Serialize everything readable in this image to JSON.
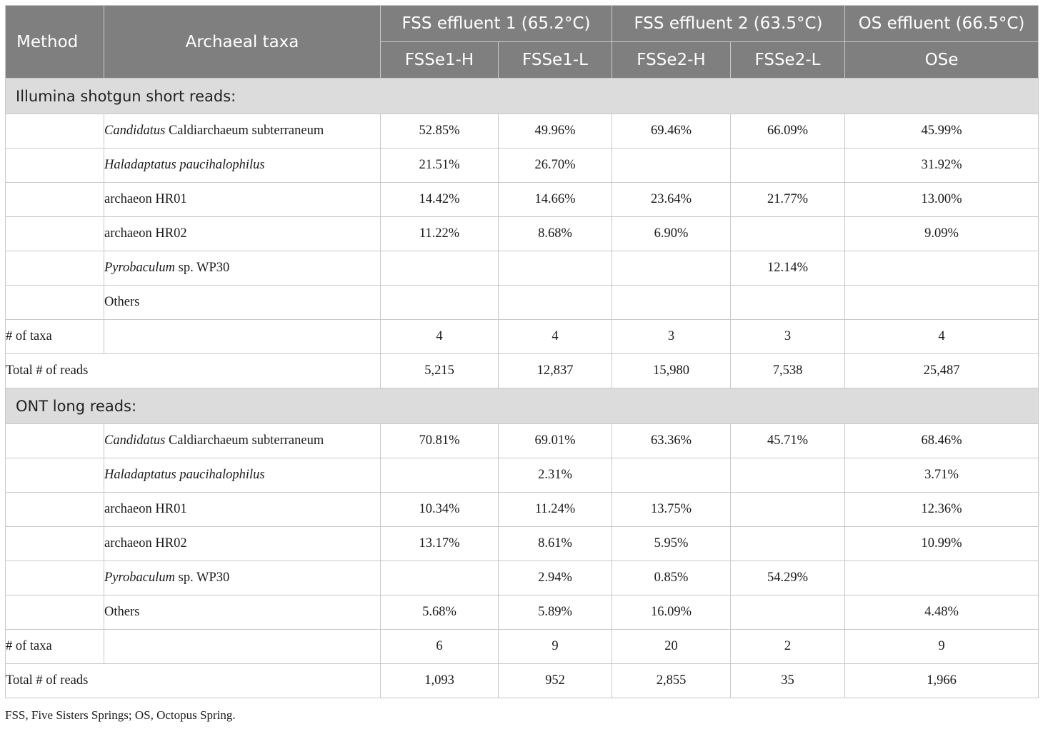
{
  "header": {
    "method": "Method",
    "archaeal_taxa": "Archaeal taxa",
    "groups": [
      "FSS effluent 1 (65.2°C)",
      "FSS effluent 2 (63.5°C)",
      "OS effluent (66.5°C)"
    ],
    "samples": [
      "FSSe1-H",
      "FSSe1-L",
      "FSSe2-H",
      "FSSe2-L",
      "OSe"
    ]
  },
  "sections": [
    {
      "title": "Illumina shotgun short reads:",
      "taxa": [
        {
          "name_italic": "Candidatus",
          "name_rest": " Caldiarchaeum subterraneum",
          "values": [
            "52.85%",
            "49.96%",
            "69.46%",
            "66.09%",
            "45.99%"
          ]
        },
        {
          "name_italic": "Haladaptatus paucihalophilus",
          "name_rest": "",
          "values": [
            "21.51%",
            "26.70%",
            "",
            "",
            "31.92%"
          ]
        },
        {
          "name_italic": "",
          "name_rest": "archaeon HR01",
          "values": [
            "14.42%",
            "14.66%",
            "23.64%",
            "21.77%",
            "13.00%"
          ]
        },
        {
          "name_italic": "",
          "name_rest": "archaeon HR02",
          "values": [
            "11.22%",
            "8.68%",
            "6.90%",
            "",
            "9.09%"
          ]
        },
        {
          "name_italic": "Pyrobaculum",
          "name_rest": " sp. WP30",
          "values": [
            "",
            "",
            "",
            "12.14%",
            ""
          ]
        },
        {
          "name_italic": "",
          "name_rest": "Others",
          "values": [
            "",
            "",
            "",
            "",
            ""
          ]
        }
      ],
      "num_taxa_label": "# of taxa",
      "num_taxa": [
        "4",
        "4",
        "3",
        "3",
        "4"
      ],
      "total_reads_label": "Total # of reads",
      "total_reads": [
        "5,215",
        "12,837",
        "15,980",
        "7,538",
        "25,487"
      ]
    },
    {
      "title": "ONT long reads:",
      "taxa": [
        {
          "name_italic": "Candidatus",
          "name_rest": " Caldiarchaeum subterraneum",
          "values": [
            "70.81%",
            "69.01%",
            "63.36%",
            "45.71%",
            "68.46%"
          ]
        },
        {
          "name_italic": "Haladaptatus paucihalophilus",
          "name_rest": "",
          "values": [
            "",
            "2.31%",
            "",
            "",
            "3.71%"
          ]
        },
        {
          "name_italic": "",
          "name_rest": "archaeon HR01",
          "values": [
            "10.34%",
            "11.24%",
            "13.75%",
            "",
            "12.36%"
          ]
        },
        {
          "name_italic": "",
          "name_rest": "archaeon HR02",
          "values": [
            "13.17%",
            "8.61%",
            "5.95%",
            "",
            "10.99%"
          ]
        },
        {
          "name_italic": "Pyrobaculum",
          "name_rest": " sp. WP30",
          "values": [
            "",
            "2.94%",
            "0.85%",
            "54.29%",
            ""
          ]
        },
        {
          "name_italic": "",
          "name_rest": "Others",
          "values": [
            "5.68%",
            "5.89%",
            "16.09%",
            "",
            "4.48%"
          ]
        }
      ],
      "num_taxa_label": "# of taxa",
      "num_taxa": [
        "6",
        "9",
        "20",
        "2",
        "9"
      ],
      "total_reads_label": "Total # of reads",
      "total_reads": [
        "1,093",
        "952",
        "2,855",
        "35",
        "1,966"
      ]
    }
  ],
  "footnote": "FSS, Five Sisters Springs; OS, Octopus Spring."
}
